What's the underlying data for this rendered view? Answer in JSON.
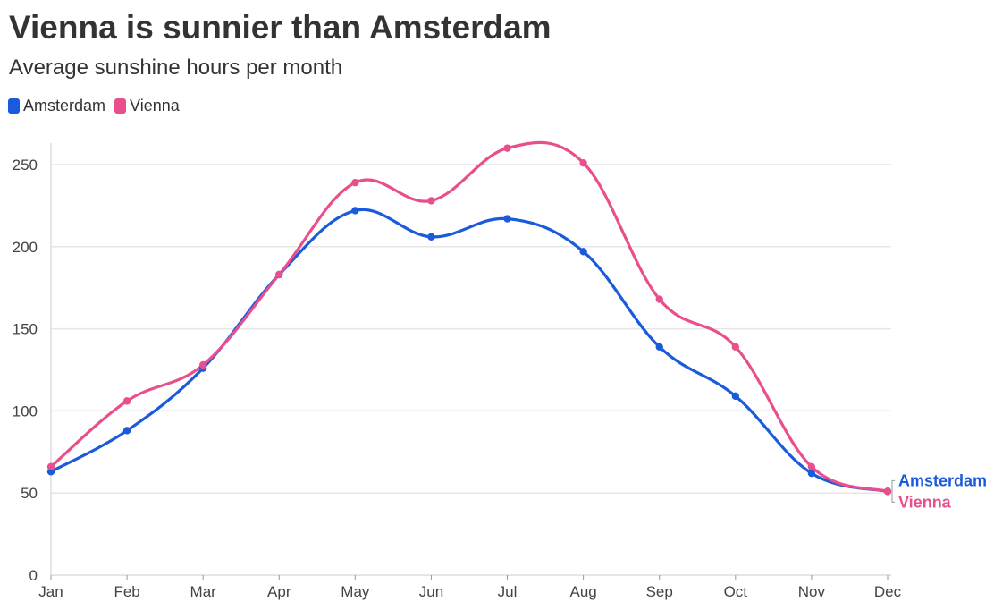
{
  "header": {
    "title": "Vienna is sunnier than Amsterdam",
    "subtitle": "Average sunshine hours per month"
  },
  "chart_data": {
    "type": "line",
    "title": "Vienna is sunnier than Amsterdam",
    "subtitle": "Average sunshine hours per month",
    "xlabel": "",
    "ylabel": "",
    "categories": [
      "Jan",
      "Feb",
      "Mar",
      "Apr",
      "May",
      "Jun",
      "Jul",
      "Aug",
      "Sep",
      "Oct",
      "Nov",
      "Dec"
    ],
    "ylim": [
      0,
      260
    ],
    "yticks": [
      0,
      50,
      100,
      150,
      200,
      250
    ],
    "grid": true,
    "legend_position": "top-left",
    "series": [
      {
        "name": "Amsterdam",
        "color": "#1a5bdc",
        "values": [
          63,
          88,
          126,
          183,
          222,
          206,
          217,
          197,
          139,
          109,
          62,
          51
        ]
      },
      {
        "name": "Vienna",
        "color": "#e94f8c",
        "values": [
          66,
          106,
          128,
          183,
          239,
          228,
          260,
          251,
          168,
          139,
          66,
          51
        ]
      }
    ]
  }
}
